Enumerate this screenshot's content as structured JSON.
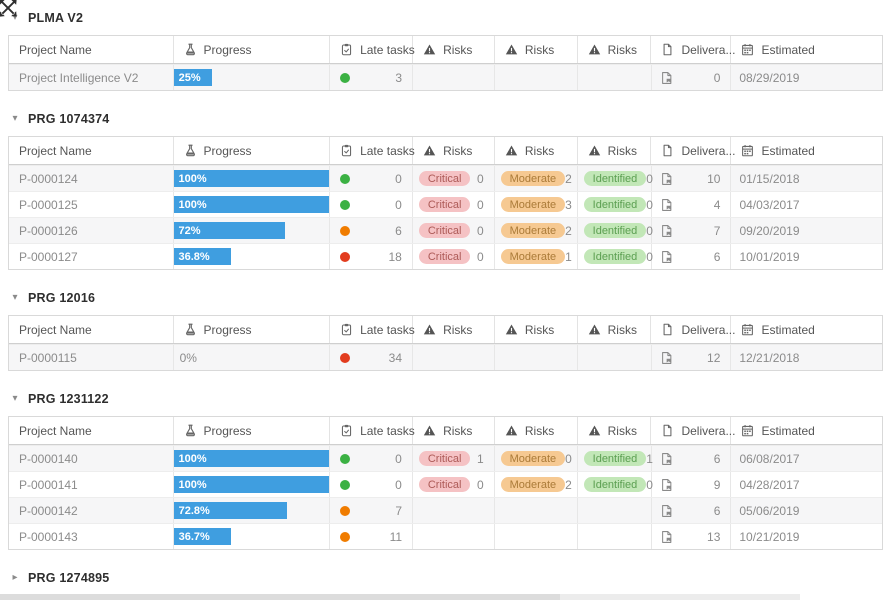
{
  "toolbar": {
    "move_icon": "move-icon"
  },
  "columns": [
    {
      "label": "Project Name",
      "icon": null,
      "width": 165
    },
    {
      "label": "Progress",
      "icon": "flask",
      "width": 157
    },
    {
      "label": "Late tasks",
      "icon": "clipboard",
      "width": 83
    },
    {
      "label": "Risks",
      "icon": "warning",
      "width": 82
    },
    {
      "label": "Risks",
      "icon": "warning",
      "width": 83
    },
    {
      "label": "Risks",
      "icon": "warning",
      "width": 74
    },
    {
      "label": "Delivera...",
      "icon": "document",
      "width": 80
    },
    {
      "label": "Estimated",
      "icon": "calendar",
      "width": 151
    }
  ],
  "colors": {
    "progress_bar": "#3f9ee0",
    "status": {
      "green": "#3bb143",
      "orange": "#f07c00",
      "red": "#e23c1e"
    },
    "chips": {
      "Critical": {
        "bg": "#f5c2c4",
        "fg": "#ad5a57"
      },
      "Moderate": {
        "bg": "#f6c992",
        "fg": "#ab7b38"
      },
      "Identified": {
        "bg": "#c2e7b7",
        "fg": "#5b9f51"
      }
    }
  },
  "groups": [
    {
      "title": "PLMA V2",
      "collapsed": false,
      "rows": [
        {
          "name": "Project Intelligence V2",
          "progress": "25%",
          "pct": 25,
          "bar": true,
          "status": "green",
          "late": 3,
          "risks": [
            null,
            null,
            null
          ],
          "deliverables": 0,
          "estimated": "08/29/2019"
        }
      ]
    },
    {
      "title": "PRG 1074374",
      "collapsed": false,
      "rows": [
        {
          "name": "P-0000124",
          "progress": "100%",
          "pct": 100,
          "bar": true,
          "status": "green",
          "late": 0,
          "risks": [
            {
              "label": "Critical",
              "value": 0
            },
            {
              "label": "Moderate",
              "value": 2
            },
            {
              "label": "Identified",
              "value": 0
            }
          ],
          "deliverables": 10,
          "estimated": "01/15/2018"
        },
        {
          "name": "P-0000125",
          "progress": "100%",
          "pct": 100,
          "bar": true,
          "status": "green",
          "late": 0,
          "risks": [
            {
              "label": "Critical",
              "value": 0
            },
            {
              "label": "Moderate",
              "value": 3
            },
            {
              "label": "Identified",
              "value": 0
            }
          ],
          "deliverables": 4,
          "estimated": "04/03/2017"
        },
        {
          "name": "P-0000126",
          "progress": "72%",
          "pct": 72,
          "bar": true,
          "status": "orange",
          "late": 6,
          "risks": [
            {
              "label": "Critical",
              "value": 0
            },
            {
              "label": "Moderate",
              "value": 2
            },
            {
              "label": "Identified",
              "value": 0
            }
          ],
          "deliverables": 7,
          "estimated": "09/20/2019"
        },
        {
          "name": "P-0000127",
          "progress": "36.8%",
          "pct": 36.8,
          "bar": true,
          "status": "red",
          "late": 18,
          "risks": [
            {
              "label": "Critical",
              "value": 0
            },
            {
              "label": "Moderate",
              "value": 1
            },
            {
              "label": "Identified",
              "value": 0
            }
          ],
          "deliverables": 6,
          "estimated": "10/01/2019"
        }
      ]
    },
    {
      "title": "PRG 12016",
      "collapsed": false,
      "rows": [
        {
          "name": "P-0000115",
          "progress": "0%",
          "pct": 0,
          "bar": false,
          "status": "red",
          "late": 34,
          "risks": [
            null,
            null,
            null
          ],
          "deliverables": 12,
          "estimated": "12/21/2018"
        }
      ]
    },
    {
      "title": "PRG 1231122",
      "collapsed": false,
      "rows": [
        {
          "name": "P-0000140",
          "progress": "100%",
          "pct": 100,
          "bar": true,
          "status": "green",
          "late": 0,
          "risks": [
            {
              "label": "Critical",
              "value": 1
            },
            {
              "label": "Moderate",
              "value": 0
            },
            {
              "label": "Identified",
              "value": 1
            }
          ],
          "deliverables": 6,
          "estimated": "06/08/2017"
        },
        {
          "name": "P-0000141",
          "progress": "100%",
          "pct": 100,
          "bar": true,
          "status": "green",
          "late": 0,
          "risks": [
            {
              "label": "Critical",
              "value": 0
            },
            {
              "label": "Moderate",
              "value": 2
            },
            {
              "label": "Identified",
              "value": 0
            }
          ],
          "deliverables": 9,
          "estimated": "04/28/2017"
        },
        {
          "name": "P-0000142",
          "progress": "72.8%",
          "pct": 72.8,
          "bar": true,
          "status": "orange",
          "late": 7,
          "risks": [
            null,
            null,
            null
          ],
          "deliverables": 6,
          "estimated": "05/06/2019"
        },
        {
          "name": "P-0000143",
          "progress": "36.7%",
          "pct": 36.7,
          "bar": true,
          "status": "orange",
          "late": 11,
          "risks": [
            null,
            null,
            null
          ],
          "deliverables": 13,
          "estimated": "10/21/2019"
        }
      ]
    },
    {
      "title": "PRG 1274895",
      "collapsed": true,
      "rows": []
    }
  ]
}
